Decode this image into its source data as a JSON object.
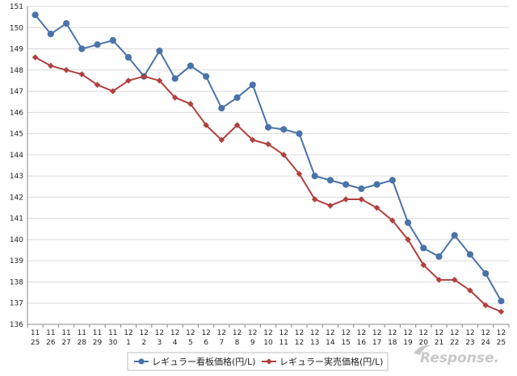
{
  "chart_data": {
    "type": "line",
    "title": "",
    "xlabel": "",
    "ylabel": "",
    "ylim": [
      136,
      151
    ],
    "yticks": [
      136,
      137,
      138,
      139,
      140,
      141,
      142,
      143,
      144,
      145,
      146,
      147,
      148,
      149,
      150,
      151
    ],
    "grid": true,
    "legend_position": "bottom",
    "categories": [
      {
        "month": "11",
        "day": "25"
      },
      {
        "month": "11",
        "day": "26"
      },
      {
        "month": "11",
        "day": "27"
      },
      {
        "month": "11",
        "day": "28"
      },
      {
        "month": "11",
        "day": "29"
      },
      {
        "month": "11",
        "day": "30"
      },
      {
        "month": "12",
        "day": "1"
      },
      {
        "month": "12",
        "day": "2"
      },
      {
        "month": "12",
        "day": "3"
      },
      {
        "month": "12",
        "day": "4"
      },
      {
        "month": "12",
        "day": "5"
      },
      {
        "month": "12",
        "day": "6"
      },
      {
        "month": "12",
        "day": "7"
      },
      {
        "month": "12",
        "day": "8"
      },
      {
        "month": "12",
        "day": "9"
      },
      {
        "month": "12",
        "day": "10"
      },
      {
        "month": "12",
        "day": "11"
      },
      {
        "month": "12",
        "day": "12"
      },
      {
        "month": "12",
        "day": "13"
      },
      {
        "month": "12",
        "day": "14"
      },
      {
        "month": "12",
        "day": "15"
      },
      {
        "month": "12",
        "day": "16"
      },
      {
        "month": "12",
        "day": "17"
      },
      {
        "month": "12",
        "day": "18"
      },
      {
        "month": "12",
        "day": "19"
      },
      {
        "month": "12",
        "day": "20"
      },
      {
        "month": "12",
        "day": "21"
      },
      {
        "month": "12",
        "day": "22"
      },
      {
        "month": "12",
        "day": "23"
      },
      {
        "month": "12",
        "day": "24"
      },
      {
        "month": "12",
        "day": "25"
      }
    ],
    "series": [
      {
        "name": "レギュラー看板価格(円/L)",
        "color": "#4a73a9",
        "marker": "circle",
        "values": [
          150.6,
          149.7,
          150.2,
          149.0,
          149.2,
          149.4,
          148.6,
          147.7,
          148.9,
          147.6,
          148.2,
          147.7,
          146.2,
          146.7,
          147.3,
          145.3,
          145.2,
          145.0,
          143.0,
          142.8,
          142.6,
          142.4,
          142.6,
          142.8,
          140.8,
          139.6,
          139.2,
          140.2,
          139.3,
          138.4,
          137.1
        ]
      },
      {
        "name": "レギュラー実売価格(円/L)",
        "color": "#b0413e",
        "marker": "diamond",
        "values": [
          148.6,
          148.2,
          148.0,
          147.8,
          147.3,
          147.0,
          147.5,
          147.7,
          147.5,
          146.7,
          146.4,
          145.4,
          144.7,
          145.4,
          144.7,
          144.5,
          144.0,
          143.1,
          141.9,
          141.6,
          141.9,
          141.9,
          141.5,
          140.9,
          140.0,
          138.8,
          138.1,
          138.1,
          137.6,
          136.9,
          136.6
        ]
      }
    ]
  },
  "watermark": {
    "text": "Response."
  }
}
